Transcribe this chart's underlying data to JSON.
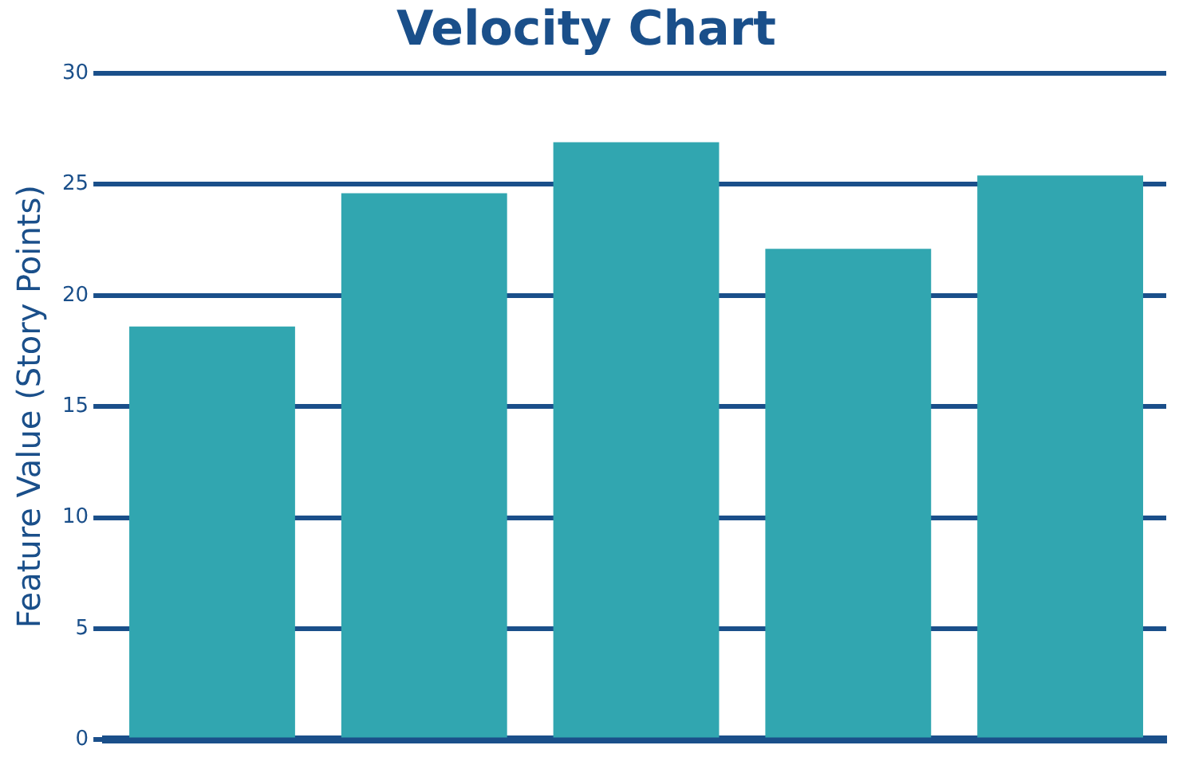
{
  "chart_data": {
    "type": "bar",
    "title": "Velocity Chart",
    "ylabel": "Feature Value (Story Points)",
    "categories": [
      null,
      null,
      null,
      null,
      null
    ],
    "values": [
      18.6,
      24.6,
      26.9,
      22.1,
      25.4
    ],
    "color": "#31a6b0",
    "ylim": [
      0,
      30
    ],
    "yticks": [
      0,
      5,
      10,
      15,
      20,
      25,
      30
    ],
    "grid": "y",
    "legend": false
  }
}
